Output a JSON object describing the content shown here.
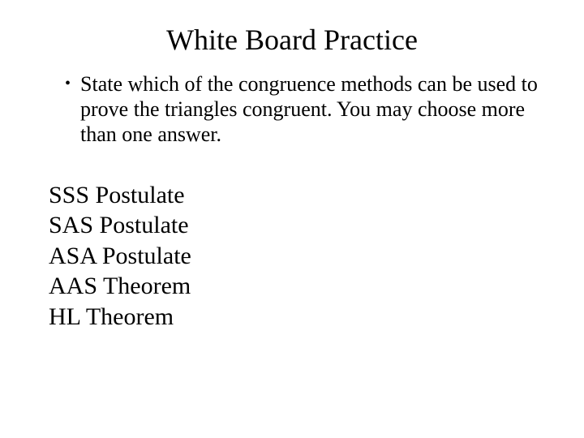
{
  "title": "White Board Practice",
  "bullet": {
    "text": "State which of the congruence methods can be used to prove the triangles congruent. You may choose more than one answer."
  },
  "methods": [
    "SSS Postulate",
    "SAS Postulate",
    "ASA Postulate",
    "AAS Theorem",
    "HL Theorem"
  ],
  "colors": {
    "background": "#ffffff",
    "text": "#000000"
  },
  "typography": {
    "font_family": "Times New Roman",
    "title_fontsize": 36,
    "bullet_fontsize": 26,
    "list_fontsize": 30
  }
}
